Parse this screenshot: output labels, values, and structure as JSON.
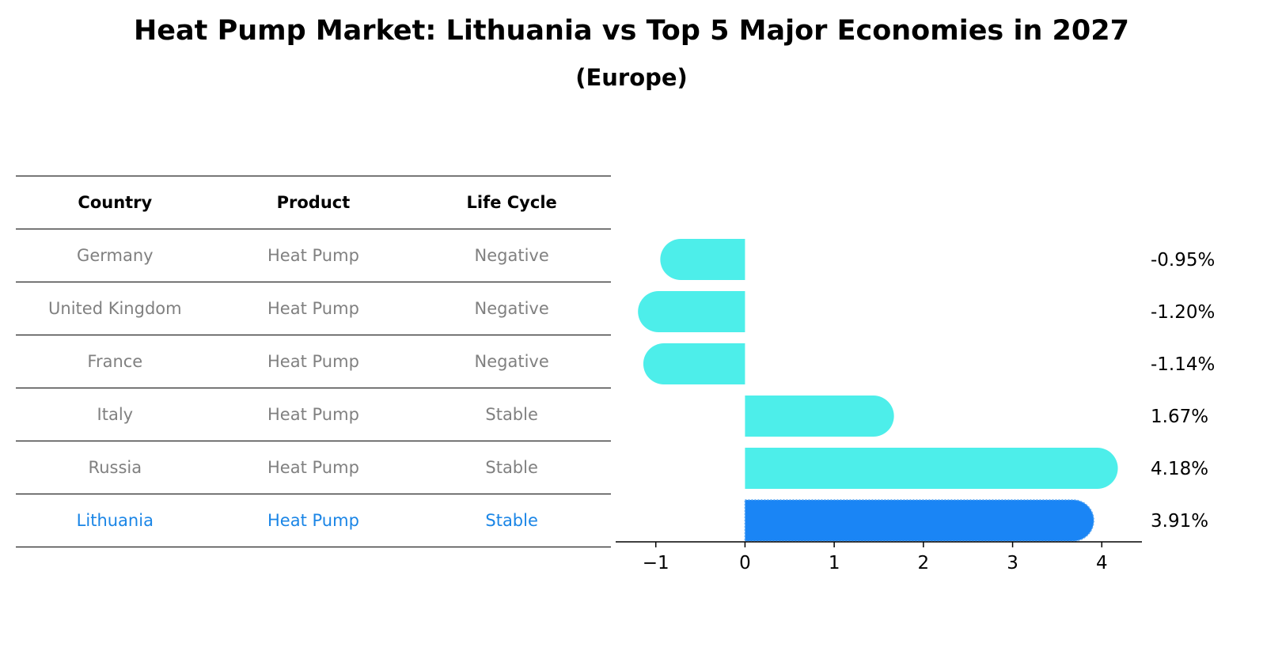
{
  "title": "Heat Pump Market: Lithuania vs Top 5 Major Economies in 2027",
  "subtitle": "(Europe)",
  "table": {
    "headers": [
      "Country",
      "Product",
      "Life Cycle"
    ],
    "rows": [
      [
        "Germany",
        "Heat Pump",
        "Negative"
      ],
      [
        "United Kingdom",
        "Heat Pump",
        "Negative"
      ],
      [
        "France",
        "Heat Pump",
        "Negative"
      ],
      [
        "Italy",
        "Heat Pump",
        "Stable"
      ],
      [
        "Russia",
        "Heat Pump",
        "Stable"
      ],
      [
        "Lithuania",
        "Heat Pump",
        "Stable"
      ]
    ],
    "highlight_row": 5
  },
  "colors": {
    "bar": "#4deeea",
    "highlight_bar": "#1a85f5",
    "row_text": "#808080",
    "highlight_text": "#1a85e6"
  },
  "chart_data": {
    "type": "bar",
    "orientation": "horizontal",
    "categories": [
      "Germany",
      "United Kingdom",
      "France",
      "Italy",
      "Russia",
      "Lithuania"
    ],
    "values": [
      -0.95,
      -1.2,
      -1.14,
      1.67,
      4.18,
      3.91
    ],
    "value_labels": [
      "-0.95%",
      "-1.20%",
      "-1.14%",
      "1.67%",
      "4.18%",
      "3.91%"
    ],
    "highlight_index": 5,
    "xlim": [
      -1.45,
      4.45
    ],
    "xticks": [
      -1,
      0,
      1,
      2,
      3,
      4
    ],
    "xtick_labels": [
      "−1",
      "0",
      "1",
      "2",
      "3",
      "4"
    ],
    "grid": false
  }
}
